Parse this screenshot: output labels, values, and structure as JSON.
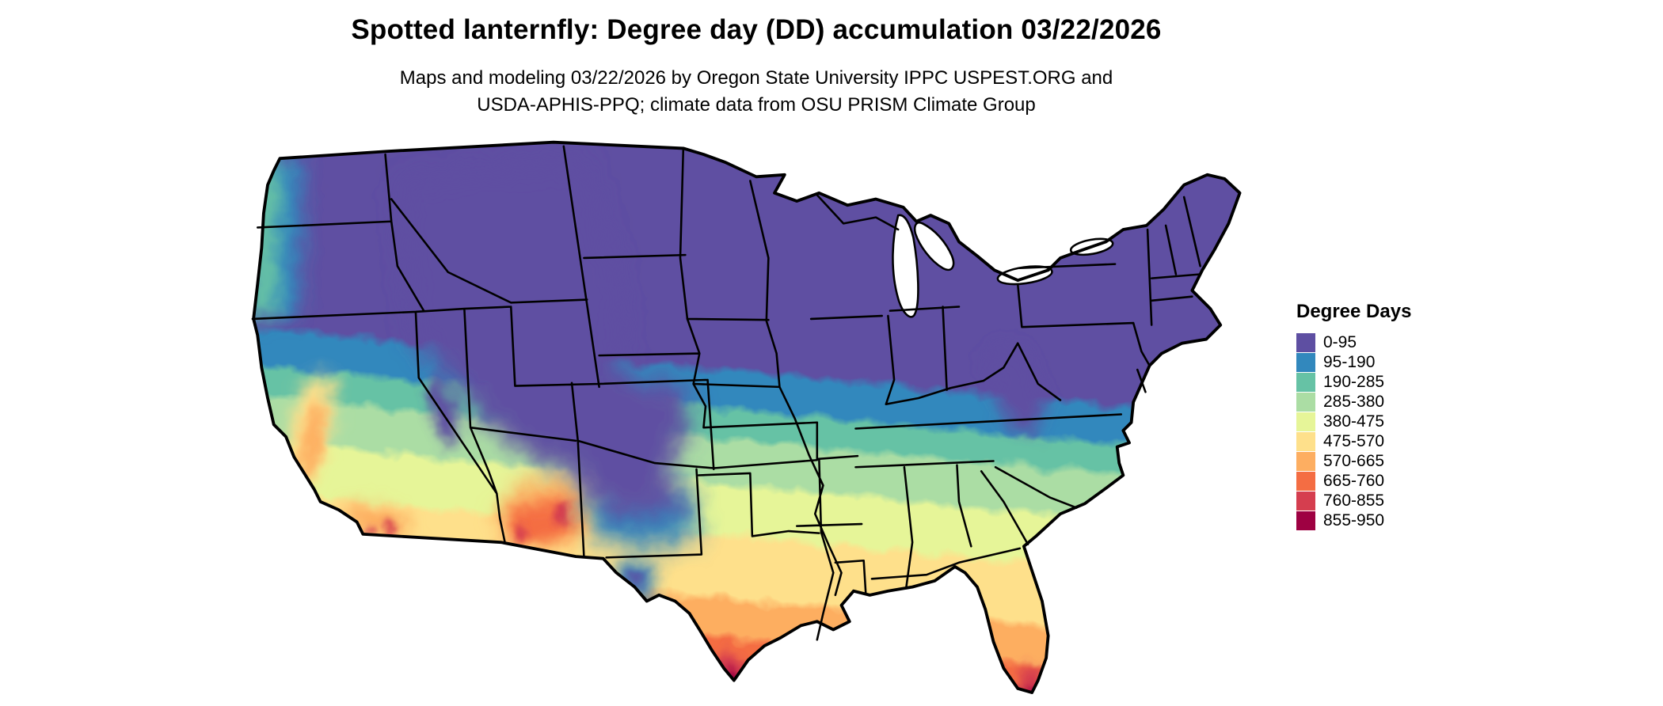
{
  "header": {
    "title": "Spotted lanternfly: Degree day (DD) accumulation 03/22/2026",
    "subtitle_line1": "Maps and modeling 03/22/2026 by Oregon State University IPPC USPEST.ORG and",
    "subtitle_line2": "USDA-APHIS-PPQ; climate data from OSU PRISM Climate Group"
  },
  "legend": {
    "title": "Degree Days",
    "bins": [
      {
        "label": "0-95",
        "color": "#5e4fa2"
      },
      {
        "label": "95-190",
        "color": "#3288bd"
      },
      {
        "label": "190-285",
        "color": "#66c2a5"
      },
      {
        "label": "285-380",
        "color": "#abdda4"
      },
      {
        "label": "380-475",
        "color": "#e6f598"
      },
      {
        "label": "475-570",
        "color": "#fee08b"
      },
      {
        "label": "570-665",
        "color": "#fdae61"
      },
      {
        "label": "665-760",
        "color": "#f46d43"
      },
      {
        "label": "760-855",
        "color": "#d53e4f"
      },
      {
        "label": "855-950",
        "color": "#9e0142"
      }
    ]
  }
}
